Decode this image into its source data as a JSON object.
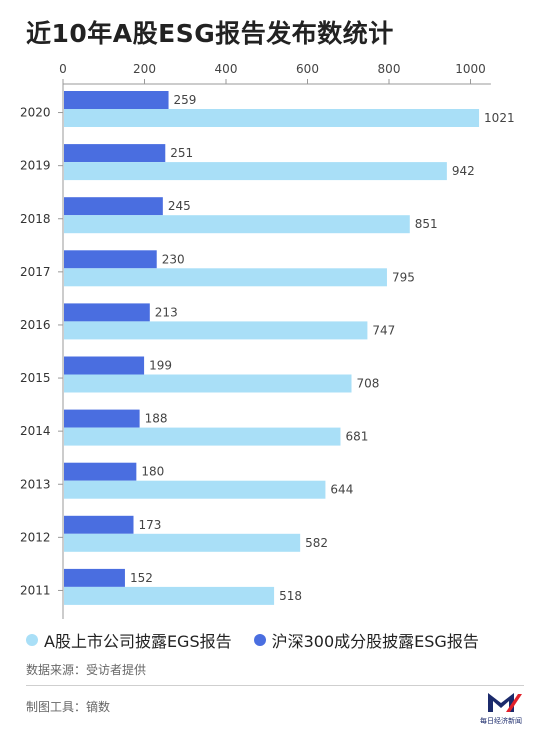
{
  "title": "近10年A股ESG报告发布数统计",
  "colors": {
    "dark": "#4a6ee0",
    "light": "#a9dff7"
  },
  "legend": {
    "light_label": "A股上市公司披露EGS报告",
    "dark_label": "沪深300成分股披露ESG报告"
  },
  "source": "数据来源：受访者提供",
  "tool": "制图工具：镝数",
  "logo": {
    "text": "每日经济新闻"
  },
  "chart_data": {
    "type": "bar",
    "orientation": "horizontal",
    "title": "近10年A股ESG报告发布数统计",
    "categories": [
      "2020",
      "2019",
      "2018",
      "2017",
      "2016",
      "2015",
      "2014",
      "2013",
      "2012",
      "2011"
    ],
    "series": [
      {
        "name": "沪深300成分股披露ESG报告",
        "values": [
          259,
          251,
          245,
          230,
          213,
          199,
          188,
          180,
          173,
          152
        ]
      },
      {
        "name": "A股上市公司披露EGS报告",
        "values": [
          1021,
          942,
          851,
          795,
          747,
          708,
          681,
          644,
          582,
          518
        ]
      }
    ],
    "xlim": [
      0,
      1050
    ],
    "xticks": [
      0,
      200,
      400,
      600,
      800,
      1000
    ],
    "grid": false,
    "legend_position": "bottom"
  }
}
